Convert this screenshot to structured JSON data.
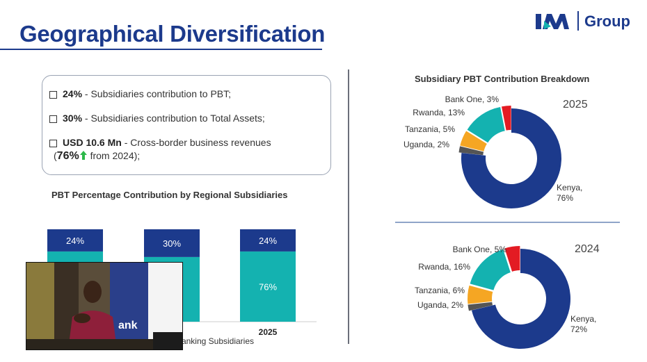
{
  "slide": {
    "title": "Geographical Diversification",
    "logo_text": "Group",
    "logo_mark": "I&M"
  },
  "kpis": [
    {
      "bold": "24%",
      "text": " - Subsidiaries contribution to PBT;"
    },
    {
      "bold": "30%",
      "text": " - Subsidiaries contribution to Total Assets;"
    },
    {
      "bold": "USD 10.6 Mn",
      "text": " - Cross-border business revenues"
    }
  ],
  "kpi_growth": {
    "open": "(",
    "value": "76%",
    "text": " from 2024);"
  },
  "colors": {
    "navy": "#1c3a8c",
    "teal": "#14b2b0",
    "orange": "#f5a623",
    "gray": "#555555",
    "red": "#e31b23",
    "arrow": "#2db84a"
  },
  "video": {
    "caption_fragment": "ank",
    "icon": "speaker-video-feed"
  },
  "chart_data": [
    {
      "type": "bar",
      "title": "PBT Percentage Contribution by Regional Subsidiaries",
      "xlabel": "Banking Subsidiaries",
      "categories": [
        "",
        "",
        "2025"
      ],
      "series": [
        {
          "values": [
            76,
            70,
            76
          ],
          "labels": [
            "",
            "",
            "76%"
          ]
        },
        {
          "values": [
            24,
            30,
            24
          ],
          "labels": [
            "24%",
            "30%",
            "24%"
          ]
        }
      ],
      "ylim": [
        0,
        100
      ]
    },
    {
      "type": "pie",
      "title": "Subsidiary PBT Contribution Breakdown",
      "year": "2025",
      "slices": [
        {
          "label": "Kenya,",
          "label2": "76%",
          "value": 76
        },
        {
          "label": "Uganda, 2%",
          "value": 2
        },
        {
          "label": "Tanzania, 5%",
          "value": 5
        },
        {
          "label": "Rwanda, 13%",
          "value": 13
        },
        {
          "label": "Bank One, 3%",
          "value": 3
        }
      ]
    },
    {
      "type": "pie",
      "year": "2024",
      "slices": [
        {
          "label": "Kenya,",
          "label2": "72%",
          "value": 72
        },
        {
          "label": "Uganda, 2%",
          "value": 2
        },
        {
          "label": "Tanzania, 6%",
          "value": 6
        },
        {
          "label": "Rwanda, 16%",
          "value": 16
        },
        {
          "label": "Bank One, 5%",
          "value": 5
        }
      ]
    }
  ]
}
